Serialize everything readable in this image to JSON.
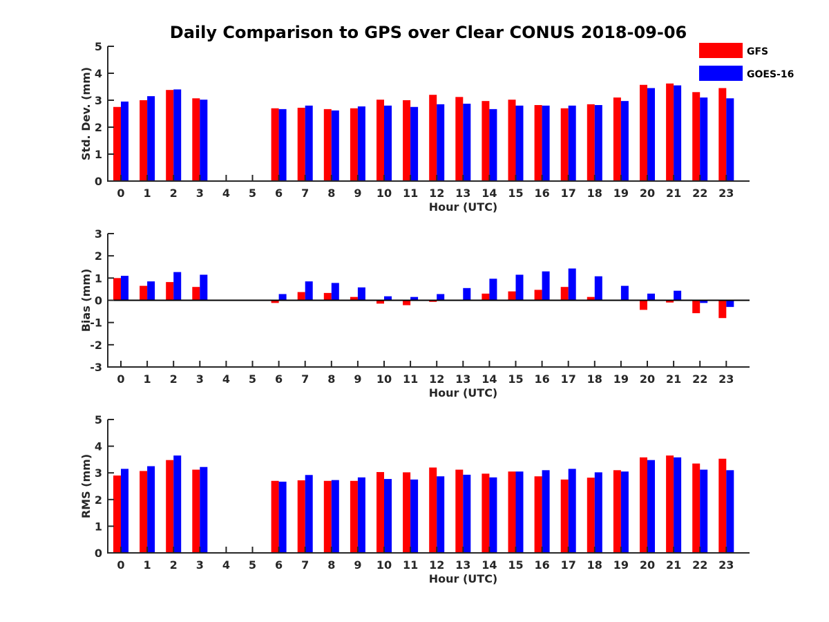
{
  "figure_title": "Daily Comparison to GPS over Clear CONUS 2018-09-06",
  "legend": [
    {
      "label": "GFS",
      "color": "#ff0000"
    },
    {
      "label": "GOES-16",
      "color": "#0000ff"
    }
  ],
  "chart_data": [
    {
      "type": "bar",
      "title": "Daily Comparison to GPS over Clear CONUS 2018-09-06",
      "xlabel": "Hour (UTC)",
      "ylabel": "Std. Dev. (mm)",
      "ylim": [
        0,
        5
      ],
      "yticks": [
        "0",
        "1",
        "2",
        "3",
        "4",
        "5"
      ],
      "categories": [
        "0",
        "1",
        "2",
        "3",
        "4",
        "5",
        "6",
        "7",
        "8",
        "9",
        "10",
        "11",
        "12",
        "13",
        "14",
        "15",
        "16",
        "17",
        "18",
        "19",
        "20",
        "21",
        "22",
        "23"
      ],
      "series": [
        {
          "name": "GFS",
          "color": "#ff0000",
          "values": [
            2.75,
            3.0,
            3.38,
            3.07,
            null,
            null,
            2.7,
            2.72,
            2.67,
            2.7,
            3.02,
            3.0,
            3.2,
            3.12,
            2.97,
            3.02,
            2.82,
            2.7,
            2.85,
            3.1,
            3.57,
            3.62,
            3.3,
            3.45
          ]
        },
        {
          "name": "GOES-16",
          "color": "#0000ff",
          "values": [
            2.95,
            3.15,
            3.4,
            3.02,
            null,
            null,
            2.67,
            2.8,
            2.62,
            2.77,
            2.8,
            2.75,
            2.85,
            2.87,
            2.67,
            2.8,
            2.8,
            2.8,
            2.82,
            2.97,
            3.45,
            3.55,
            3.1,
            3.07
          ]
        }
      ]
    },
    {
      "type": "bar",
      "xlabel": "Hour (UTC)",
      "ylabel": "Bias (mm)",
      "ylim": [
        -3,
        3
      ],
      "yticks": [
        "-3",
        "-2",
        "-1",
        "0",
        "1",
        "2",
        "3"
      ],
      "categories": [
        "0",
        "1",
        "2",
        "3",
        "4",
        "5",
        "6",
        "7",
        "8",
        "9",
        "10",
        "11",
        "12",
        "13",
        "14",
        "15",
        "16",
        "17",
        "18",
        "19",
        "20",
        "21",
        "22",
        "23"
      ],
      "series": [
        {
          "name": "GFS",
          "color": "#ff0000",
          "values": [
            1.0,
            0.65,
            0.82,
            0.6,
            null,
            null,
            -0.12,
            0.37,
            0.33,
            0.15,
            -0.15,
            -0.22,
            -0.07,
            0.0,
            0.3,
            0.4,
            0.47,
            0.6,
            0.15,
            0.0,
            -0.43,
            -0.1,
            -0.58,
            -0.8
          ]
        },
        {
          "name": "GOES-16",
          "color": "#0000ff",
          "values": [
            1.1,
            0.85,
            1.27,
            1.15,
            null,
            null,
            0.28,
            0.85,
            0.78,
            0.58,
            0.18,
            0.15,
            0.28,
            0.55,
            0.97,
            1.15,
            1.3,
            1.43,
            1.08,
            0.65,
            0.3,
            0.43,
            -0.12,
            -0.3
          ]
        }
      ]
    },
    {
      "type": "bar",
      "xlabel": "Hour (UTC)",
      "ylabel": "RMS (mm)",
      "ylim": [
        0,
        5
      ],
      "yticks": [
        "0",
        "1",
        "2",
        "3",
        "4",
        "5"
      ],
      "categories": [
        "0",
        "1",
        "2",
        "3",
        "4",
        "5",
        "6",
        "7",
        "8",
        "9",
        "10",
        "11",
        "12",
        "13",
        "14",
        "15",
        "16",
        "17",
        "18",
        "19",
        "20",
        "21",
        "22",
        "23"
      ],
      "series": [
        {
          "name": "GFS",
          "color": "#ff0000",
          "values": [
            2.9,
            3.07,
            3.48,
            3.12,
            null,
            null,
            2.7,
            2.72,
            2.7,
            2.7,
            3.03,
            3.02,
            3.2,
            3.12,
            2.97,
            3.05,
            2.87,
            2.75,
            2.82,
            3.1,
            3.58,
            3.65,
            3.35,
            3.53
          ]
        },
        {
          "name": "GOES-16",
          "color": "#0000ff",
          "values": [
            3.15,
            3.25,
            3.65,
            3.22,
            null,
            null,
            2.67,
            2.92,
            2.73,
            2.83,
            2.77,
            2.75,
            2.87,
            2.93,
            2.83,
            3.05,
            3.1,
            3.15,
            3.02,
            3.05,
            3.48,
            3.58,
            3.12,
            3.1
          ]
        }
      ]
    }
  ]
}
